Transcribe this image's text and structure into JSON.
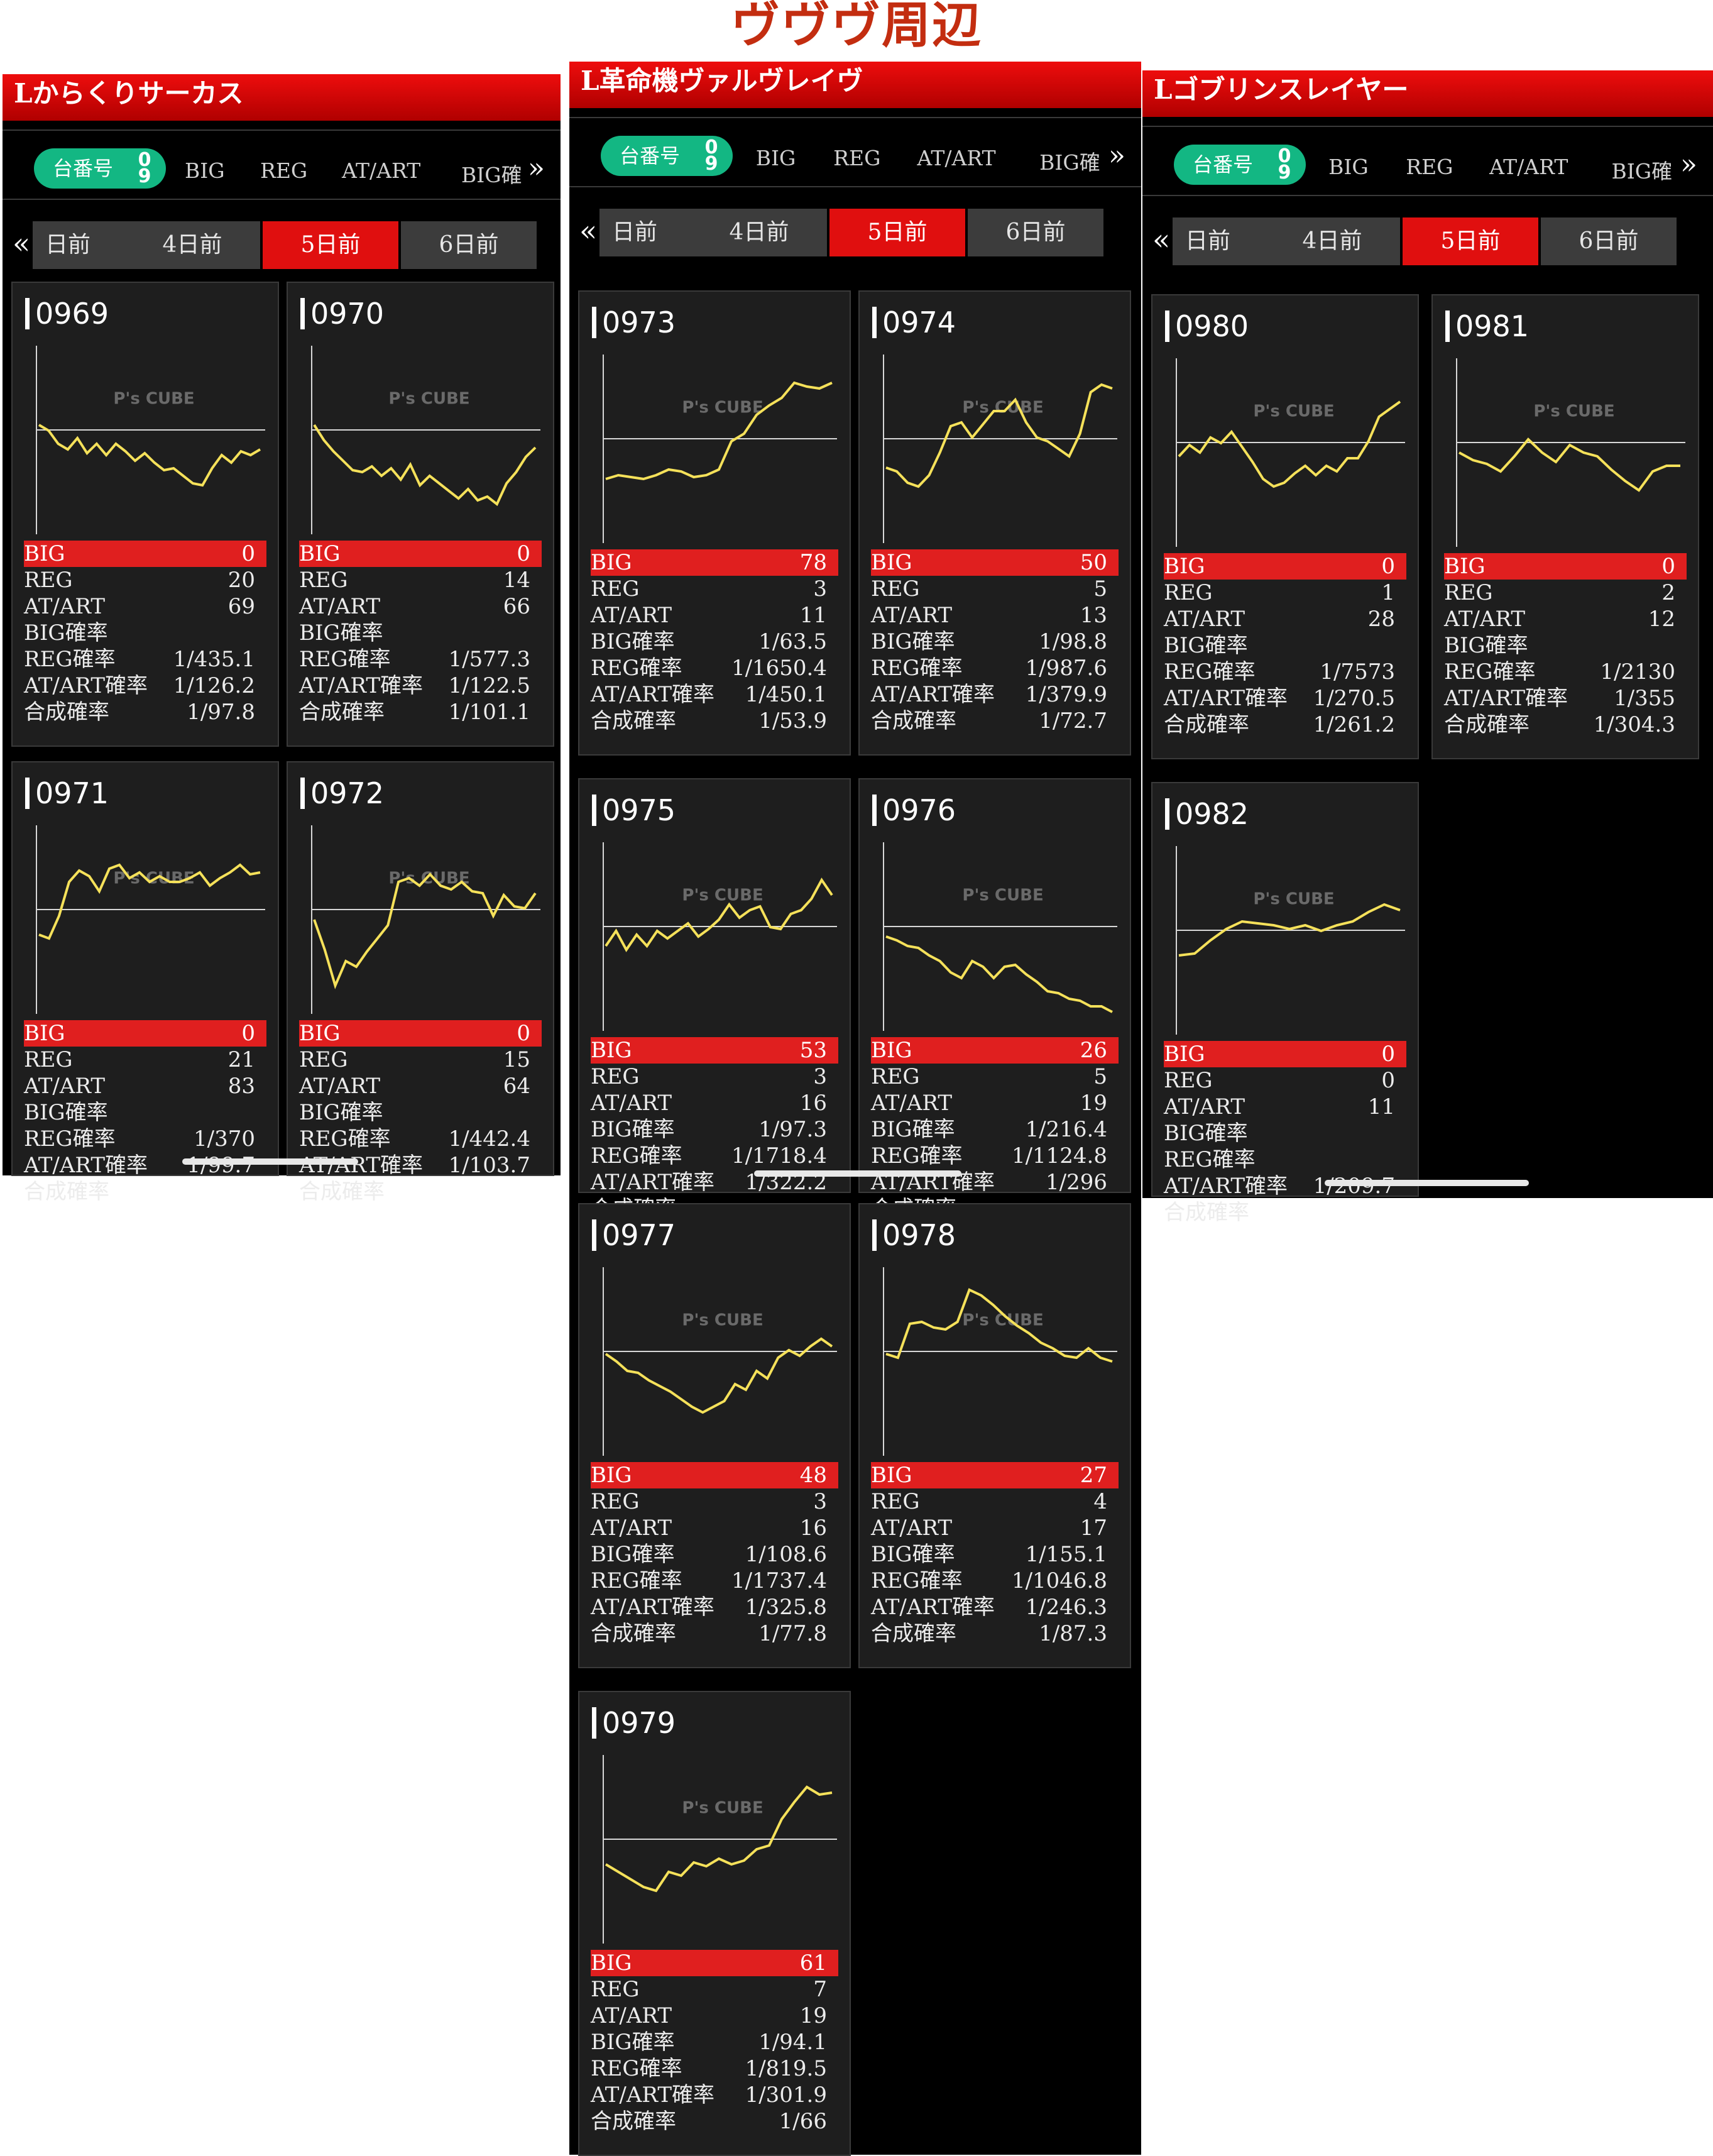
{
  "page_title": "ヴヴヴ周辺",
  "panels": [
    {
      "title": "Lからくりサーカス"
    },
    {
      "title": "L革命機ヴァルヴレイヴ"
    },
    {
      "title": "Lゴブリンスレイヤー"
    }
  ],
  "filter": {
    "sort_label": "台番号",
    "sort_icon": "0 9",
    "tabs": [
      "BIG",
      "REG",
      "AT/ART",
      "BIG確"
    ],
    "more_icon": "»"
  },
  "day_tabs": {
    "prev_icon": "«",
    "first": "日前",
    "tabs": [
      "4日前",
      "5日前",
      "6日前"
    ],
    "active": "5日前"
  },
  "watermark": "P's CUBE",
  "stat_labels": [
    "BIG",
    "REG",
    "AT/ART",
    "BIG確率",
    "REG確率",
    "AT/ART確率",
    "合成確率"
  ],
  "machines": [
    {
      "num": "0969",
      "vals": [
        "0",
        "20",
        "69",
        "",
        "1/435.1",
        "1/126.2",
        "1/97.8"
      ],
      "graph": [
        0.42,
        0.45,
        0.52,
        0.55,
        0.49,
        0.57,
        0.52,
        0.58,
        0.52,
        0.56,
        0.61,
        0.57,
        0.62,
        0.66,
        0.65,
        0.69,
        0.73,
        0.74,
        0.65,
        0.58,
        0.62,
        0.56,
        0.58,
        0.55
      ]
    },
    {
      "num": "0970",
      "vals": [
        "0",
        "14",
        "66",
        "",
        "1/577.3",
        "1/122.5",
        "1/101.1"
      ],
      "graph": [
        0.42,
        0.5,
        0.56,
        0.61,
        0.66,
        0.67,
        0.64,
        0.69,
        0.65,
        0.71,
        0.63,
        0.74,
        0.69,
        0.73,
        0.77,
        0.81,
        0.76,
        0.82,
        0.8,
        0.84,
        0.73,
        0.67,
        0.59,
        0.54
      ]
    },
    {
      "num": "0971",
      "vals": [
        "0",
        "21",
        "83",
        "",
        "1/370",
        "1/99.7",
        ""
      ],
      "graph": [
        0.58,
        0.6,
        0.48,
        0.3,
        0.24,
        0.27,
        0.35,
        0.23,
        0.21,
        0.28,
        0.25,
        0.3,
        0.27,
        0.3,
        0.3,
        0.28,
        0.25,
        0.32,
        0.28,
        0.25,
        0.21,
        0.26,
        0.25
      ]
    },
    {
      "num": "0972",
      "vals": [
        "0",
        "15",
        "64",
        "",
        "1/442.4",
        "1/103.7",
        ""
      ],
      "graph": [
        0.5,
        0.66,
        0.85,
        0.72,
        0.75,
        0.67,
        0.6,
        0.53,
        0.3,
        0.28,
        0.32,
        0.26,
        0.32,
        0.34,
        0.3,
        0.35,
        0.36,
        0.48,
        0.37,
        0.43,
        0.44,
        0.36
      ]
    },
    {
      "num": "0973",
      "vals": [
        "78",
        "3",
        "11",
        "1/63.5",
        "1/1650.4",
        "1/450.1",
        "1/53.9"
      ],
      "graph": [
        0.66,
        0.64,
        0.65,
        0.66,
        0.64,
        0.61,
        0.62,
        0.65,
        0.64,
        0.61,
        0.46,
        0.42,
        0.32,
        0.27,
        0.23,
        0.15,
        0.17,
        0.18,
        0.15
      ]
    },
    {
      "num": "0974",
      "vals": [
        "50",
        "5",
        "13",
        "1/98.8",
        "1/987.6",
        "1/379.9",
        "1/72.7"
      ],
      "graph": [
        0.6,
        0.62,
        0.68,
        0.7,
        0.64,
        0.52,
        0.38,
        0.36,
        0.44,
        0.37,
        0.3,
        0.3,
        0.24,
        0.36,
        0.44,
        0.46,
        0.5,
        0.54,
        0.42,
        0.2,
        0.16,
        0.18
      ]
    },
    {
      "num": "0975",
      "vals": [
        "53",
        "3",
        "16",
        "1/97.3",
        "1/1718.4",
        "1/322.2",
        ""
      ],
      "graph": [
        0.55,
        0.47,
        0.57,
        0.49,
        0.55,
        0.47,
        0.51,
        0.47,
        0.43,
        0.5,
        0.46,
        0.41,
        0.33,
        0.4,
        0.36,
        0.34,
        0.45,
        0.46,
        0.38,
        0.36,
        0.3,
        0.2,
        0.28
      ]
    },
    {
      "num": "0976",
      "vals": [
        "26",
        "5",
        "19",
        "1/216.4",
        "1/1124.8",
        "1/296",
        ""
      ],
      "graph": [
        0.5,
        0.52,
        0.55,
        0.56,
        0.6,
        0.63,
        0.69,
        0.72,
        0.63,
        0.66,
        0.72,
        0.66,
        0.65,
        0.7,
        0.74,
        0.79,
        0.8,
        0.83,
        0.84,
        0.87,
        0.87,
        0.9
      ]
    },
    {
      "num": "0977",
      "vals": [
        "48",
        "3",
        "16",
        "1/108.6",
        "1/1737.4",
        "1/325.8",
        "1/77.8"
      ],
      "graph": [
        0.46,
        0.5,
        0.55,
        0.56,
        0.6,
        0.63,
        0.66,
        0.7,
        0.74,
        0.77,
        0.74,
        0.71,
        0.62,
        0.65,
        0.55,
        0.59,
        0.48,
        0.44,
        0.47,
        0.42,
        0.38,
        0.42
      ]
    },
    {
      "num": "0978",
      "vals": [
        "27",
        "4",
        "17",
        "1/155.1",
        "1/1046.8",
        "1/246.3",
        "1/87.3"
      ],
      "graph": [
        0.46,
        0.48,
        0.3,
        0.29,
        0.32,
        0.33,
        0.29,
        0.12,
        0.15,
        0.2,
        0.26,
        0.31,
        0.35,
        0.4,
        0.43,
        0.47,
        0.48,
        0.43,
        0.48,
        0.5
      ]
    },
    {
      "num": "0979",
      "vals": [
        "61",
        "7",
        "19",
        "1/94.1",
        "1/819.5",
        "1/301.9",
        "1/66"
      ],
      "graph": [
        0.58,
        0.62,
        0.66,
        0.7,
        0.72,
        0.62,
        0.64,
        0.57,
        0.59,
        0.55,
        0.58,
        0.56,
        0.5,
        0.48,
        0.34,
        0.25,
        0.17,
        0.21,
        0.2
      ]
    },
    {
      "num": "0980",
      "vals": [
        "0",
        "1",
        "28",
        "",
        "1/7573",
        "1/270.5",
        "1/261.2"
      ],
      "graph": [
        0.52,
        0.46,
        0.5,
        0.42,
        0.45,
        0.39,
        0.47,
        0.55,
        0.64,
        0.68,
        0.66,
        0.61,
        0.57,
        0.62,
        0.57,
        0.6,
        0.53,
        0.53,
        0.44,
        0.31,
        0.27,
        0.23
      ]
    },
    {
      "num": "0981",
      "vals": [
        "0",
        "2",
        "12",
        "",
        "1/2130",
        "1/355",
        "1/304.3"
      ],
      "graph": [
        0.5,
        0.54,
        0.56,
        0.6,
        0.52,
        0.43,
        0.5,
        0.55,
        0.46,
        0.5,
        0.52,
        0.59,
        0.65,
        0.7,
        0.6,
        0.57,
        0.57
      ]
    },
    {
      "num": "0982",
      "vals": [
        "0",
        "0",
        "11",
        "",
        "",
        "1/209.7",
        ""
      ],
      "graph": [
        0.58,
        0.57,
        0.5,
        0.44,
        0.4,
        0.41,
        0.42,
        0.44,
        0.42,
        0.45,
        0.42,
        0.4,
        0.35,
        0.31,
        0.34
      ]
    }
  ]
}
